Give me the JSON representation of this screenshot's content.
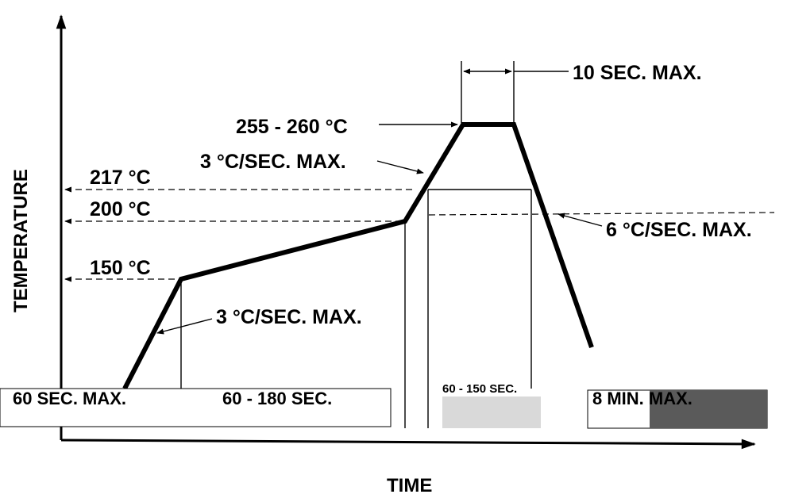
{
  "axes": {
    "y_title": "TEMPERATURE",
    "x_title": "TIME"
  },
  "temperature_labels": {
    "t217": "217 °C",
    "t200": "200 °C",
    "t150": "150 °C",
    "peak": "255 - 260 °C"
  },
  "rate_labels": {
    "ramp_up_preheat": "3 °C/SEC. MAX.",
    "ramp_up_reflow": "3 °C/SEC. MAX.",
    "ramp_down": "6 °C/SEC. MAX."
  },
  "time_labels": {
    "peak_hold": "10 SEC. MAX.",
    "preheat_ramp": "60 SEC. MAX.",
    "soak": "60 - 180 SEC.",
    "above_liquidus": "60 - 150 SEC.",
    "total": "8 MIN. MAX."
  },
  "colors": {
    "line": "#000000",
    "gray_light": "#d9d9d9",
    "gray_dark": "#5a5a5a"
  }
}
